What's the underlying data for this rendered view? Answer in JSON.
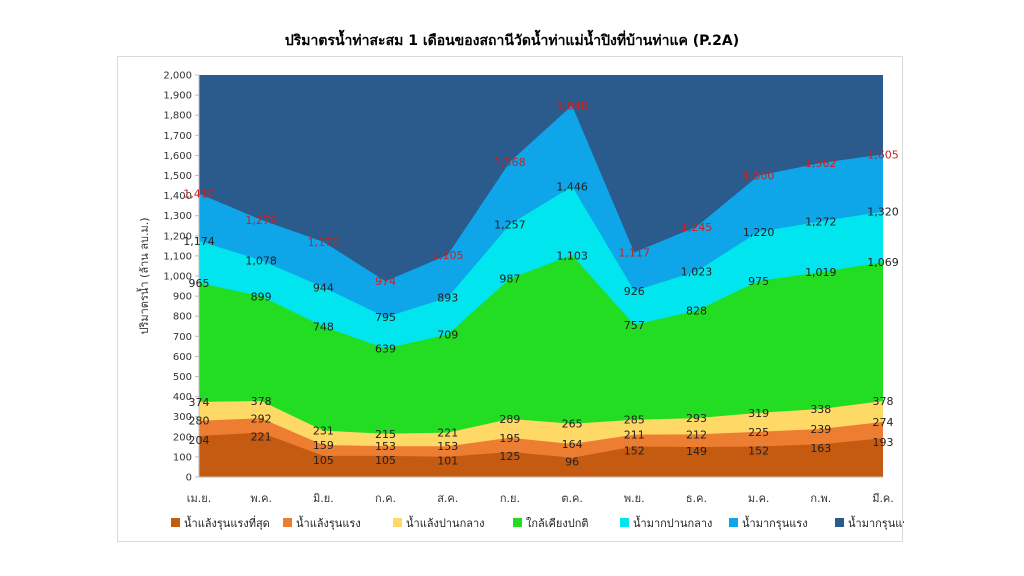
{
  "title": "ปริมาตรน้ำท่าสะสม 1 เดือนของสถานีวัดน้ำท่าแม่น้ำปิงที่บ้านท่าแค (P.2A)",
  "chart_data": {
    "type": "area",
    "title": "ปริมาตรน้ำท่าสะสม 1 เดือนของสถานีวัดน้ำท่าแม่น้ำปิงที่บ้านท่าแค (P.2A)",
    "ylabel": "ปริมาตรน้ำ (ล้าน ลบ.ม.)",
    "xlabel": "",
    "ylim": [
      0,
      2000
    ],
    "yticks": [
      0,
      100,
      200,
      300,
      400,
      500,
      600,
      700,
      800,
      900,
      1000,
      1100,
      1200,
      1300,
      1400,
      1500,
      1600,
      1700,
      1800,
      1900,
      2000
    ],
    "ytick_labels": [
      "0",
      "100",
      "200",
      "300",
      "400",
      "500",
      "600",
      "700",
      "800",
      "900",
      "1,000",
      "1,100",
      "1,200",
      "1,300",
      "1,400",
      "1,500",
      "1,600",
      "1,700",
      "1,800",
      "1,900",
      "2,000"
    ],
    "categories": [
      "เม.ย.",
      "พ.ค.",
      "มิ.ย.",
      "ก.ค.",
      "ส.ค.",
      "ก.ย.",
      "ต.ค.",
      "พ.ย.",
      "ธ.ค.",
      "ม.ค.",
      "ก.พ.",
      "มี.ค."
    ],
    "legend_position": "bottom",
    "series": [
      {
        "name": "น้ำแล้งรุนแรงที่สุด",
        "color": "#c55a11",
        "values": [
          204,
          221,
          105,
          105,
          101,
          125,
          96,
          152,
          149,
          152,
          163,
          193
        ],
        "labels": [
          "204",
          "221",
          "105",
          "105",
          "101",
          "125",
          "96",
          "152",
          "149",
          "152",
          "163",
          "193"
        ]
      },
      {
        "name": "น้ำแล้งรุนแรง",
        "color": "#ed7d31",
        "values": [
          280,
          292,
          159,
          153,
          153,
          195,
          164,
          211,
          212,
          225,
          239,
          274
        ],
        "labels": [
          "280",
          "292",
          "159",
          "153",
          "153",
          "195",
          "164",
          "211",
          "212",
          "225",
          "239",
          "274"
        ]
      },
      {
        "name": "น้ำแล้งปานกลาง",
        "color": "#ffd966",
        "values": [
          374,
          378,
          231,
          215,
          221,
          289,
          265,
          285,
          293,
          319,
          338,
          378
        ],
        "labels": [
          "374",
          "378",
          "231",
          "215",
          "221",
          "289",
          "265",
          "285",
          "293",
          "319",
          "338",
          "378"
        ]
      },
      {
        "name": "ใกล้เคียงปกติ",
        "color": "#22dd22",
        "values": [
          965,
          899,
          748,
          639,
          709,
          987,
          1103,
          757,
          828,
          975,
          1019,
          1069
        ],
        "labels": [
          "965",
          "899",
          "748",
          "639",
          "709",
          "987",
          "1,103",
          "757",
          "828",
          "975",
          "1,019",
          "1,069"
        ]
      },
      {
        "name": "น้ำมากปานกลาง",
        "color": "#00e5ee",
        "values": [
          1174,
          1078,
          944,
          795,
          893,
          1257,
          1446,
          926,
          1023,
          1220,
          1272,
          1320
        ],
        "labels": [
          "1,174",
          "1,078",
          "944",
          "795",
          "893",
          "1,257",
          "1,446",
          "926",
          "1,023",
          "1,220",
          "1,272",
          "1,320"
        ]
      },
      {
        "name": "น้ำมากรุนแรง",
        "color": "#0ea5e9",
        "values": [
          1410,
          1279,
          1170,
          974,
          1105,
          1568,
          1848,
          1117,
          1245,
          1500,
          1562,
          1605
        ],
        "labels": [
          "1,410",
          "1,279",
          "1,170",
          "974",
          "1,105",
          "1,568",
          "1,848",
          "1,117",
          "1,245",
          "1,500",
          "1,562",
          "1,605"
        ]
      },
      {
        "name": "น้ำมากรุนแรงที่สุด",
        "color": "#2b5b8c",
        "values": [
          2000,
          2000,
          2000,
          2000,
          2000,
          2000,
          2000,
          2000,
          2000,
          2000,
          2000,
          2000
        ],
        "labels": []
      }
    ]
  }
}
